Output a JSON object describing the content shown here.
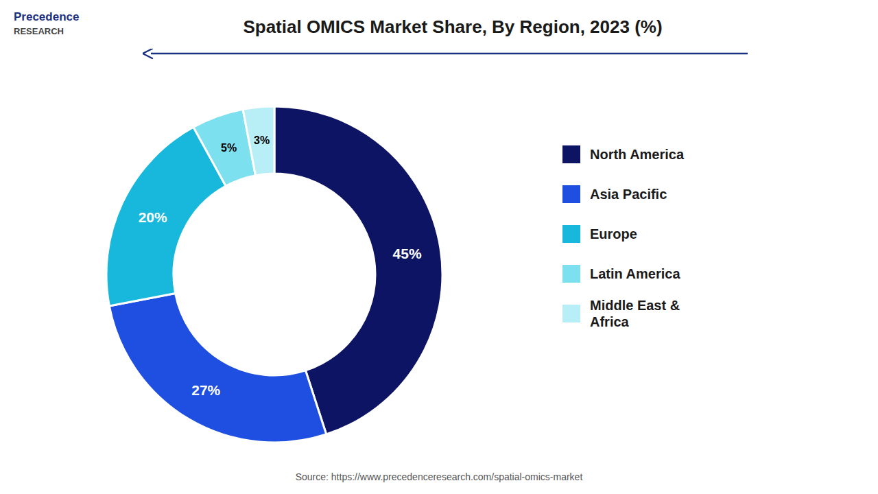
{
  "chart_data": {
    "type": "donut",
    "title": "Spatial OMICS Market Share, By Region, 2023 (%)",
    "categories": [
      "North America",
      "Asia Pacific",
      "Europe",
      "Latin America",
      "Middle East &\nAfrica"
    ],
    "values": [
      45,
      27,
      20,
      5,
      3
    ],
    "value_labels": [
      "45%",
      "27%",
      "20%",
      "5%",
      "3%"
    ],
    "colors": [
      "#0d1464",
      "#1f4fe0",
      "#17b8dc",
      "#7de0ee",
      "#b8eef6"
    ],
    "data_labels": true,
    "legend": "right",
    "annotations": [
      "Source: https://www.precedenceresearch.com/spatial-omics-market",
      "Precedence",
      "RESEARCH"
    ]
  }
}
